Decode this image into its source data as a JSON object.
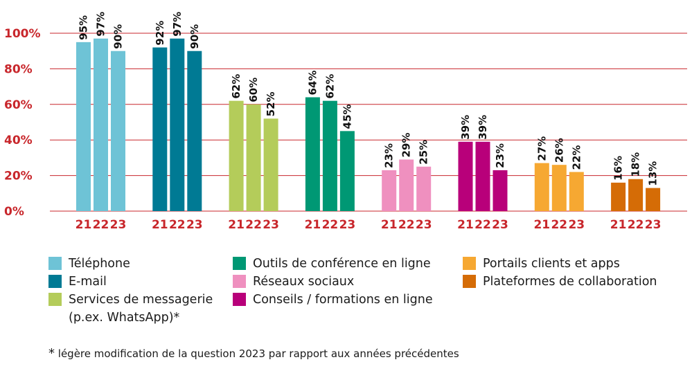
{
  "chart_data": {
    "type": "bar",
    "categories": [
      "Téléphone",
      "E-mail",
      "Services de messagerie (p.ex. WhatsApp)*",
      "Outils de conférence en ligne",
      "Réseaux sociaux",
      "Conseils / formations en ligne",
      "Portails clients et apps",
      "Plateformes de collaboration"
    ],
    "years": [
      "21",
      "22",
      "23"
    ],
    "groups": [
      {
        "name": "Téléphone",
        "color": "#6ec3d6",
        "values": [
          95,
          97,
          90
        ]
      },
      {
        "name": "E-mail",
        "color": "#007a94",
        "values": [
          92,
          97,
          90
        ]
      },
      {
        "name": "Services de messagerie (p.ex. WhatsApp)*",
        "color": "#b4cc5a",
        "values": [
          62,
          60,
          52
        ]
      },
      {
        "name": "Outils de conférence en ligne",
        "color": "#009874",
        "values": [
          64,
          62,
          45
        ]
      },
      {
        "name": "Réseaux sociaux",
        "color": "#ef90bf",
        "values": [
          23,
          29,
          25
        ]
      },
      {
        "name": "Conseils / formations en ligne",
        "color": "#b8007a",
        "values": [
          39,
          39,
          23
        ]
      },
      {
        "name": "Portails clients et apps",
        "color": "#f6a832",
        "values": [
          27,
          26,
          22
        ]
      },
      {
        "name": "Plateformes de collaboration",
        "color": "#d56c06",
        "values": [
          16,
          18,
          13
        ]
      }
    ],
    "value_labels": [
      [
        "95%",
        "97%",
        "90%"
      ],
      [
        "92%",
        "97%",
        "90%"
      ],
      [
        "62%",
        "60%",
        "52%"
      ],
      [
        "64%",
        "62%",
        "45%"
      ],
      [
        "23%",
        "29%",
        "25%"
      ],
      [
        "39%",
        "39%",
        "23%"
      ],
      [
        "27%",
        "26%",
        "22%"
      ],
      [
        "16%",
        "18%",
        "13%"
      ]
    ],
    "yticks": [
      "0%",
      "20%",
      "40%",
      "60%",
      "80%",
      "100%"
    ],
    "ylim": [
      0,
      100
    ],
    "grid": true,
    "legend_placement": "bottom"
  },
  "legend": [
    {
      "label": "Téléphone",
      "color": "#6ec3d6"
    },
    {
      "label": "E-mail",
      "color": "#007a94"
    },
    {
      "label": "Services de messagerie (p.ex. WhatsApp)*",
      "color": "#b4cc5a"
    },
    {
      "label": "Outils de conférence en ligne",
      "color": "#009874"
    },
    {
      "label": "Réseaux sociaux",
      "color": "#ef90bf"
    },
    {
      "label": "Conseils / formations en ligne",
      "color": "#b8007a"
    },
    {
      "label": "Portails clients et apps",
      "color": "#f6a832"
    },
    {
      "label": "Plateformes de collaboration",
      "color": "#d56c06"
    }
  ],
  "footnote": {
    "marker": "*",
    "text": "légère modification de la question 2023 par rapport aux années précédentes"
  },
  "colors": {
    "axis_text": "#c8262b",
    "gridline": "#c8262b"
  }
}
